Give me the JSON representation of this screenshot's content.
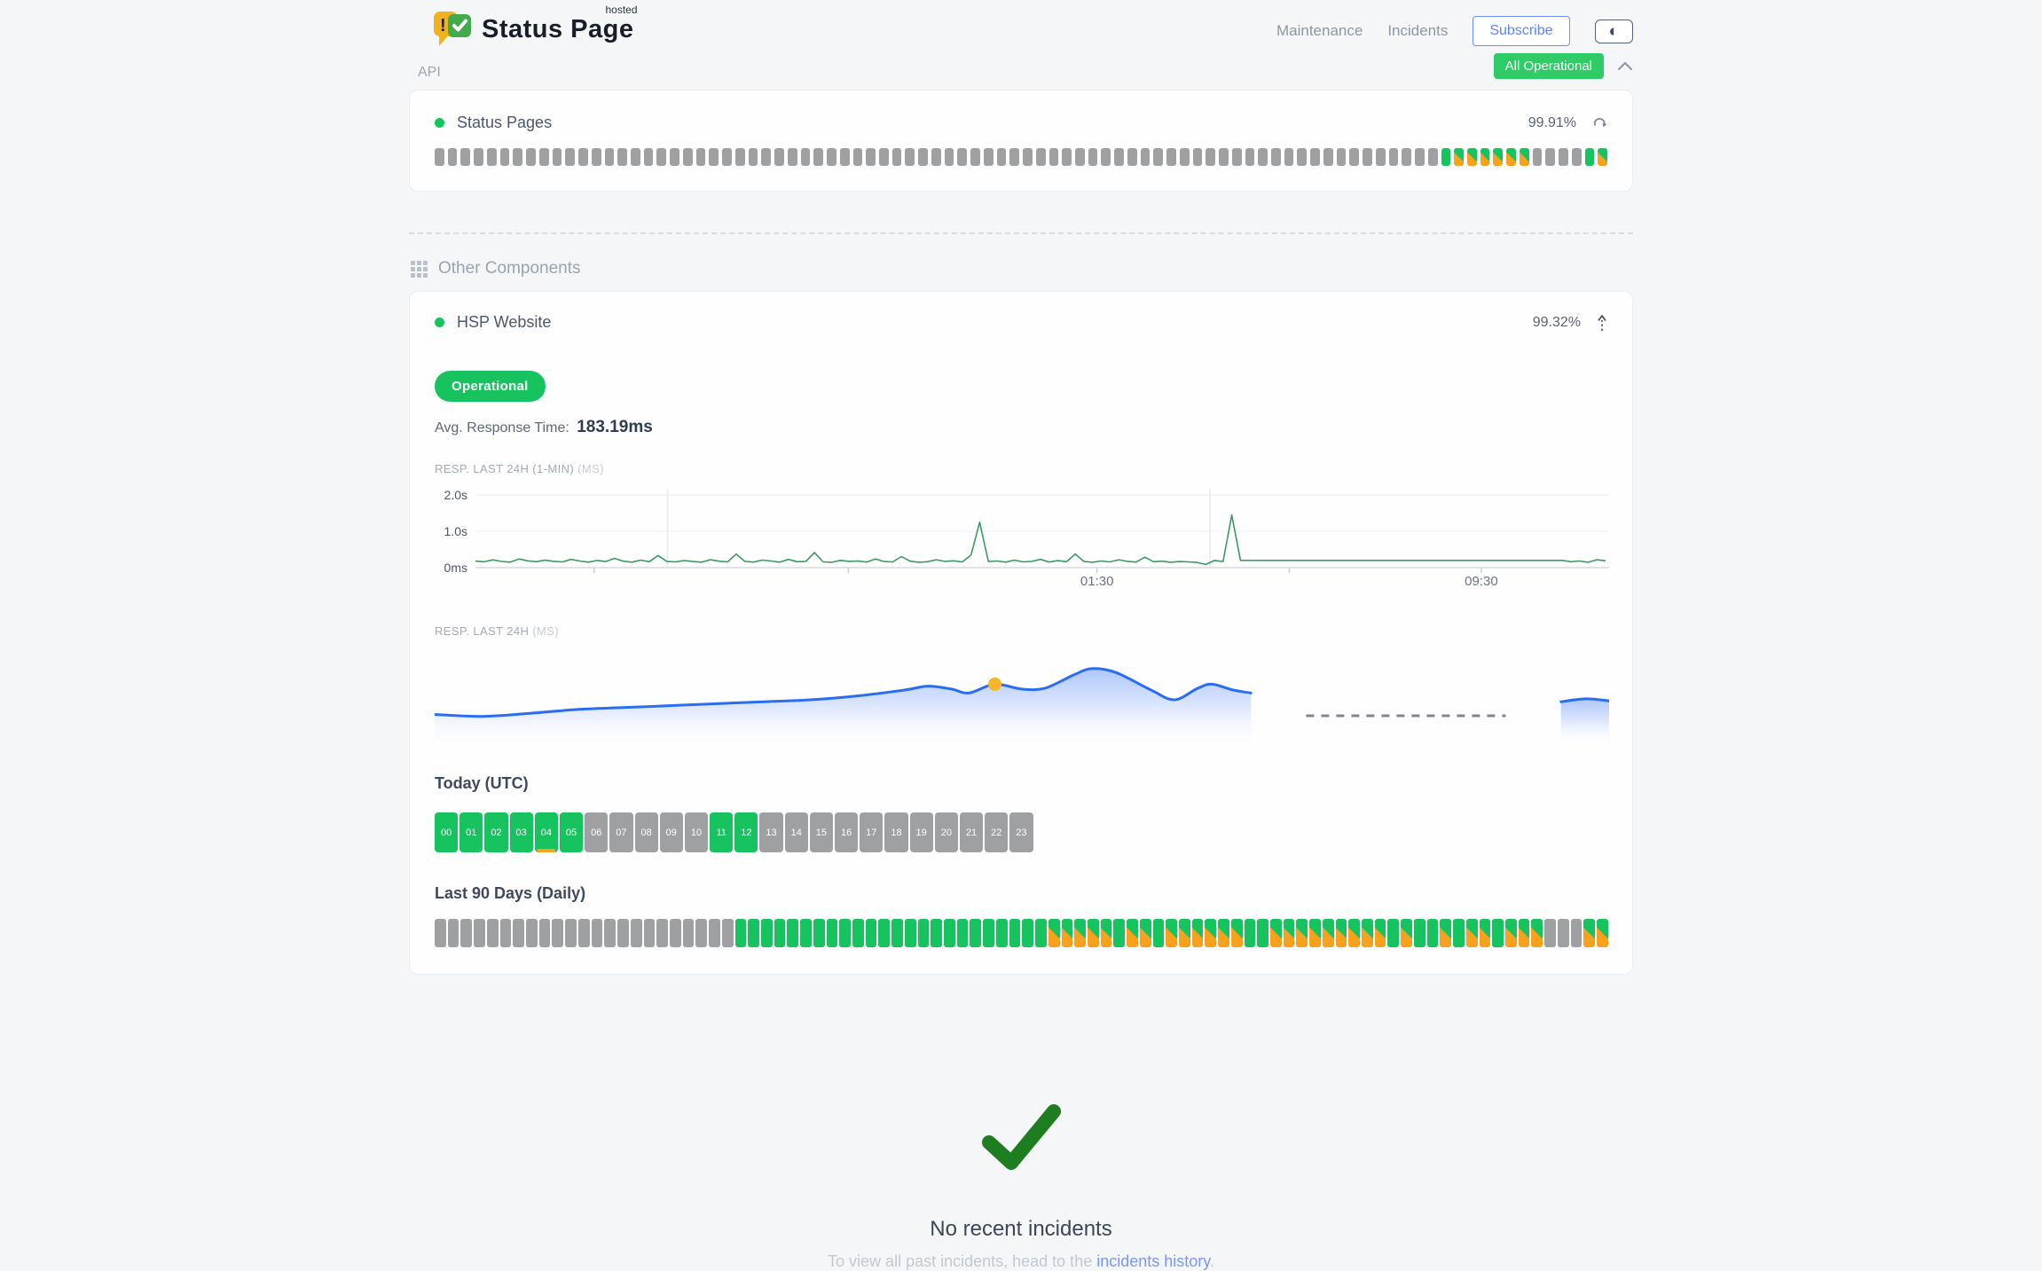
{
  "header": {
    "logo": {
      "title": "Status Page",
      "superscript": "hosted"
    },
    "nav": {
      "maintenance": "Maintenance",
      "incidents": "Incidents",
      "subscribe": "Subscribe"
    },
    "overall_status": "All Operational"
  },
  "api_section": {
    "title": "API",
    "component": {
      "name": "Status Pages",
      "uptime_pct": "99.91%",
      "bars": "NNNNNNNNNNNNNNNNNNNNNNNNNNNNNNNNNNNNNNNNNNNNNNNNNNNNNNNNNNNNNNNNNNNNNNNNNNNNNUDDDDDDNNNNUD"
    }
  },
  "other": {
    "title": "Other Components",
    "component": {
      "name": "HSP Website",
      "uptime_pct": "99.32%",
      "status_badge": "Operational",
      "avg_rt_label": "Avg. Response Time:",
      "avg_rt_value": "183.19ms"
    }
  },
  "labels": {
    "resp_1min": "RESP. LAST 24H (1-MIN)",
    "resp_24h": "RESP. LAST 24H",
    "unit_ms": "(MS)",
    "today": "Today (UTC)",
    "last90": "Last 90 Days (Daily)"
  },
  "today_hours": [
    {
      "label": "00",
      "state": "U"
    },
    {
      "label": "01",
      "state": "U"
    },
    {
      "label": "02",
      "state": "U"
    },
    {
      "label": "03",
      "state": "U"
    },
    {
      "label": "04",
      "state": "U",
      "partial": true
    },
    {
      "label": "05",
      "state": "U"
    },
    {
      "label": "06",
      "state": "N"
    },
    {
      "label": "07",
      "state": "N"
    },
    {
      "label": "08",
      "state": "N"
    },
    {
      "label": "09",
      "state": "N"
    },
    {
      "label": "10",
      "state": "N"
    },
    {
      "label": "11",
      "state": "U"
    },
    {
      "label": "12",
      "state": "U"
    },
    {
      "label": "13",
      "state": "N"
    },
    {
      "label": "14",
      "state": "N"
    },
    {
      "label": "15",
      "state": "N"
    },
    {
      "label": "16",
      "state": "N"
    },
    {
      "label": "17",
      "state": "N"
    },
    {
      "label": "18",
      "state": "N"
    },
    {
      "label": "19",
      "state": "N"
    },
    {
      "label": "20",
      "state": "N"
    },
    {
      "label": "21",
      "state": "N"
    },
    {
      "label": "22",
      "state": "N"
    },
    {
      "label": "23",
      "state": "N"
    }
  ],
  "last90_pattern": "NNNNNNNNNNNNNNNNNNNNNNNUUUUUUUUUUUUUUUUUUUUUUUUDDDDDUDDUDDDDDDUUDDDDDDDDDUDUUDUDDUDDDNNNDD",
  "incidents": {
    "none_title": "No recent incidents",
    "history_prefix": "To view all past incidents, head to the ",
    "history_link": "incidents history",
    "history_suffix": "."
  },
  "colors": {
    "operational_green": "#16c35f",
    "badge_green": "#2ecb66",
    "degraded_orange": "#f7a11c",
    "no_data_gray": "#9fa0a2",
    "line_green": "#3a9b62",
    "area_blue": "#2a6df5",
    "marker_yellow": "#f4b62a",
    "check_green": "#1e7d1e",
    "link_blue": "#7b97f2"
  },
  "chart_data": [
    {
      "type": "line",
      "title": "RESP. LAST 24H (1-MIN)",
      "unit": "MS",
      "ylim": [
        0,
        2000
      ],
      "color": "#3a9b62",
      "grid": true,
      "legend_position": "none",
      "y_ticks": [
        {
          "label": "2.0s",
          "value": 2000
        },
        {
          "label": "1.0s",
          "value": 1000
        },
        {
          "label": "0ms",
          "value": 0
        }
      ],
      "x_gridlines": [
        0.17,
        0.65
      ],
      "x_ticks": [
        0.105,
        0.33,
        0.55,
        0.72,
        0.89
      ],
      "x_tick_labels": [
        {
          "label": "01:30",
          "pos": 0.55
        },
        {
          "label": "09:30",
          "pos": 0.89
        }
      ],
      "values": [
        180,
        160,
        215,
        170,
        152,
        238,
        188,
        164,
        205,
        174,
        158,
        228,
        184,
        152,
        198,
        168,
        255,
        178,
        150,
        208,
        163,
        335,
        174,
        158,
        194,
        169,
        151,
        218,
        179,
        159,
        372,
        169,
        154,
        208,
        183,
        151,
        228,
        164,
        173,
        415,
        159,
        149,
        199,
        174,
        184,
        154,
        238,
        169,
        159,
        305,
        179,
        149,
        164,
        218,
        174,
        189,
        159,
        345,
        1250,
        168,
        184,
        151,
        208,
        159,
        174,
        228,
        154,
        193,
        164,
        375,
        169,
        149,
        184,
        159,
        218,
        174,
        153,
        288,
        164,
        179,
        149,
        169,
        159,
        144,
        88,
        198,
        168,
        1450,
        200,
        200,
        200,
        200,
        200,
        200,
        200,
        200,
        200,
        200,
        200,
        200,
        200,
        200,
        200,
        200,
        200,
        200,
        200,
        200,
        200,
        200,
        200,
        200,
        200,
        200,
        200,
        200,
        200,
        200,
        200,
        200,
        200,
        200,
        200,
        200,
        200,
        200,
        164,
        184,
        149,
        218,
        188
      ]
    },
    {
      "type": "area",
      "title": "RESP. LAST 24H",
      "unit": "MS",
      "color": "#2a6df5",
      "marker": {
        "x": 0.477,
        "value": 216,
        "color": "#f4b62a"
      },
      "gap_dash": {
        "from": 0.742,
        "to": 0.912,
        "y": 74
      },
      "segments": [
        {
          "points": [
            [
              0,
              185
            ],
            [
              0.04,
              183
            ],
            [
              0.08,
              186
            ],
            [
              0.12,
              190
            ],
            [
              0.16,
              192
            ],
            [
              0.2,
              194
            ],
            [
              0.24,
              196
            ],
            [
              0.28,
              198
            ],
            [
              0.32,
              200
            ],
            [
              0.36,
              204
            ],
            [
              0.4,
              210
            ],
            [
              0.42,
              214
            ],
            [
              0.44,
              211
            ],
            [
              0.455,
              207
            ],
            [
              0.477,
              216
            ],
            [
              0.5,
              211
            ],
            [
              0.52,
              212
            ],
            [
              0.545,
              226
            ],
            [
              0.56,
              232
            ],
            [
              0.58,
              228
            ],
            [
              0.61,
              210
            ],
            [
              0.63,
              200
            ],
            [
              0.65,
              212
            ],
            [
              0.662,
              216
            ],
            [
              0.68,
              210
            ],
            [
              0.695,
              207
            ]
          ]
        },
        {
          "points": [
            [
              0.959,
              198
            ],
            [
              0.98,
              201
            ],
            [
              1,
              199
            ]
          ]
        }
      ]
    }
  ]
}
